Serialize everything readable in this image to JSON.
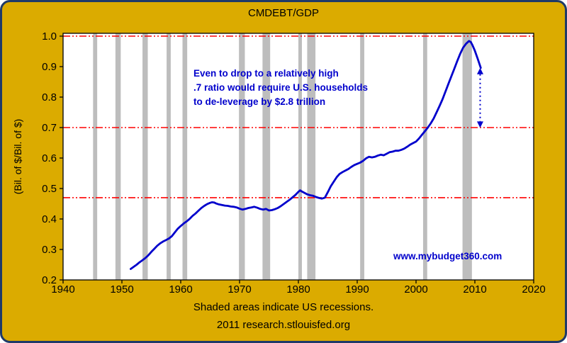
{
  "colors": {
    "background": "#DBAB00",
    "frame_border": "#1F3A68",
    "plot_background": "#FFFFFF",
    "plot_border": "#000000",
    "recession_band": "#BDBDBD",
    "reference_line": "#FF0000",
    "series_line": "#0000CC",
    "accent_text": "#0000CC",
    "axis_text": "#000000"
  },
  "chart_data": {
    "type": "line",
    "title": "CMDEBT/GDP",
    "xlabel": "",
    "ylabel": "(Bil. of $/Bil. of $)",
    "xlim": [
      1940,
      2020
    ],
    "ylim": [
      0.2,
      1.0
    ],
    "x_ticks": [
      1940,
      1950,
      1960,
      1970,
      1980,
      1990,
      2000,
      2010,
      2020
    ],
    "y_tick_labels": [
      "0.2",
      "0.3",
      "0.4",
      "0.5",
      "0.6",
      "0.7",
      "0.8",
      "0.9",
      "1.0"
    ],
    "grid": false,
    "legend": "none",
    "reference_lines": [
      1.0,
      0.7,
      0.47
    ],
    "recessions": [
      [
        1945.1,
        1945.8
      ],
      [
        1948.9,
        1949.8
      ],
      [
        1953.5,
        1954.4
      ],
      [
        1957.6,
        1958.3
      ],
      [
        1960.3,
        1961.1
      ],
      [
        1969.9,
        1970.9
      ],
      [
        1973.9,
        1975.2
      ],
      [
        1980.0,
        1980.6
      ],
      [
        1981.5,
        1982.9
      ],
      [
        1990.5,
        1991.2
      ],
      [
        2001.2,
        2001.9
      ],
      [
        2007.9,
        2009.5
      ]
    ],
    "series": [
      {
        "name": "CMDEBT/GDP",
        "points": [
          [
            1951.5,
            0.236
          ],
          [
            1952.0,
            0.243
          ],
          [
            1952.5,
            0.25
          ],
          [
            1953.0,
            0.258
          ],
          [
            1953.5,
            0.265
          ],
          [
            1954.0,
            0.272
          ],
          [
            1954.5,
            0.281
          ],
          [
            1955.0,
            0.292
          ],
          [
            1955.5,
            0.302
          ],
          [
            1956.0,
            0.312
          ],
          [
            1956.5,
            0.32
          ],
          [
            1957.0,
            0.326
          ],
          [
            1957.5,
            0.331
          ],
          [
            1958.0,
            0.336
          ],
          [
            1958.5,
            0.344
          ],
          [
            1959.0,
            0.356
          ],
          [
            1959.5,
            0.368
          ],
          [
            1960.0,
            0.377
          ],
          [
            1960.5,
            0.385
          ],
          [
            1961.0,
            0.392
          ],
          [
            1961.5,
            0.4
          ],
          [
            1962.0,
            0.41
          ],
          [
            1962.5,
            0.418
          ],
          [
            1963.0,
            0.427
          ],
          [
            1963.5,
            0.436
          ],
          [
            1964.0,
            0.443
          ],
          [
            1964.5,
            0.449
          ],
          [
            1965.0,
            0.453
          ],
          [
            1965.3,
            0.455
          ],
          [
            1965.7,
            0.454
          ],
          [
            1966.0,
            0.451
          ],
          [
            1966.5,
            0.448
          ],
          [
            1967.0,
            0.446
          ],
          [
            1967.5,
            0.444
          ],
          [
            1968.0,
            0.443
          ],
          [
            1968.5,
            0.441
          ],
          [
            1969.0,
            0.44
          ],
          [
            1969.5,
            0.438
          ],
          [
            1970.0,
            0.434
          ],
          [
            1970.5,
            0.431
          ],
          [
            1971.0,
            0.433
          ],
          [
            1971.5,
            0.436
          ],
          [
            1972.0,
            0.438
          ],
          [
            1972.5,
            0.44
          ],
          [
            1973.0,
            0.437
          ],
          [
            1973.5,
            0.433
          ],
          [
            1974.0,
            0.431
          ],
          [
            1974.5,
            0.433
          ],
          [
            1975.0,
            0.428
          ],
          [
            1975.5,
            0.429
          ],
          [
            1976.0,
            0.432
          ],
          [
            1976.5,
            0.436
          ],
          [
            1977.0,
            0.442
          ],
          [
            1977.5,
            0.449
          ],
          [
            1978.0,
            0.456
          ],
          [
            1978.5,
            0.463
          ],
          [
            1979.0,
            0.471
          ],
          [
            1979.5,
            0.479
          ],
          [
            1980.0,
            0.489
          ],
          [
            1980.3,
            0.494
          ],
          [
            1980.6,
            0.49
          ],
          [
            1981.0,
            0.486
          ],
          [
            1981.5,
            0.481
          ],
          [
            1982.0,
            0.478
          ],
          [
            1982.5,
            0.476
          ],
          [
            1983.0,
            0.472
          ],
          [
            1983.5,
            0.469
          ],
          [
            1984.0,
            0.467
          ],
          [
            1984.5,
            0.47
          ],
          [
            1985.0,
            0.488
          ],
          [
            1985.5,
            0.507
          ],
          [
            1986.0,
            0.522
          ],
          [
            1986.5,
            0.537
          ],
          [
            1987.0,
            0.548
          ],
          [
            1987.5,
            0.554
          ],
          [
            1988.0,
            0.559
          ],
          [
            1988.5,
            0.564
          ],
          [
            1989.0,
            0.571
          ],
          [
            1989.5,
            0.577
          ],
          [
            1990.0,
            0.581
          ],
          [
            1990.5,
            0.585
          ],
          [
            1991.0,
            0.591
          ],
          [
            1991.5,
            0.599
          ],
          [
            1992.0,
            0.604
          ],
          [
            1992.5,
            0.602
          ],
          [
            1993.0,
            0.604
          ],
          [
            1993.5,
            0.608
          ],
          [
            1994.0,
            0.611
          ],
          [
            1994.5,
            0.609
          ],
          [
            1995.0,
            0.614
          ],
          [
            1995.5,
            0.619
          ],
          [
            1996.0,
            0.621
          ],
          [
            1996.5,
            0.624
          ],
          [
            1997.0,
            0.624
          ],
          [
            1997.5,
            0.627
          ],
          [
            1998.0,
            0.631
          ],
          [
            1998.5,
            0.637
          ],
          [
            1999.0,
            0.644
          ],
          [
            1999.5,
            0.649
          ],
          [
            2000.0,
            0.654
          ],
          [
            2000.5,
            0.664
          ],
          [
            2001.0,
            0.676
          ],
          [
            2001.5,
            0.688
          ],
          [
            2002.0,
            0.7
          ],
          [
            2002.5,
            0.714
          ],
          [
            2003.0,
            0.73
          ],
          [
            2003.5,
            0.75
          ],
          [
            2004.0,
            0.771
          ],
          [
            2004.5,
            0.793
          ],
          [
            2005.0,
            0.818
          ],
          [
            2005.5,
            0.843
          ],
          [
            2006.0,
            0.868
          ],
          [
            2006.5,
            0.893
          ],
          [
            2007.0,
            0.918
          ],
          [
            2007.5,
            0.942
          ],
          [
            2008.0,
            0.962
          ],
          [
            2008.5,
            0.975
          ],
          [
            2009.0,
            0.984
          ],
          [
            2009.3,
            0.981
          ],
          [
            2009.6,
            0.97
          ],
          [
            2010.0,
            0.952
          ],
          [
            2010.5,
            0.925
          ],
          [
            2011.0,
            0.896
          ]
        ]
      }
    ],
    "annotation": {
      "lines": [
        "Even to drop to a relatively high",
        ".7 ratio would require U.S. households",
        "to de-leverage by $2.8 trillion"
      ]
    },
    "arrow": {
      "x": 2010.9,
      "from": 0.875,
      "to": 0.72
    },
    "watermark": "www.mybudget360.com",
    "caption_lines": [
      "Shaded areas indicate US recessions.",
      "2011 research.stlouisfed.org"
    ]
  }
}
